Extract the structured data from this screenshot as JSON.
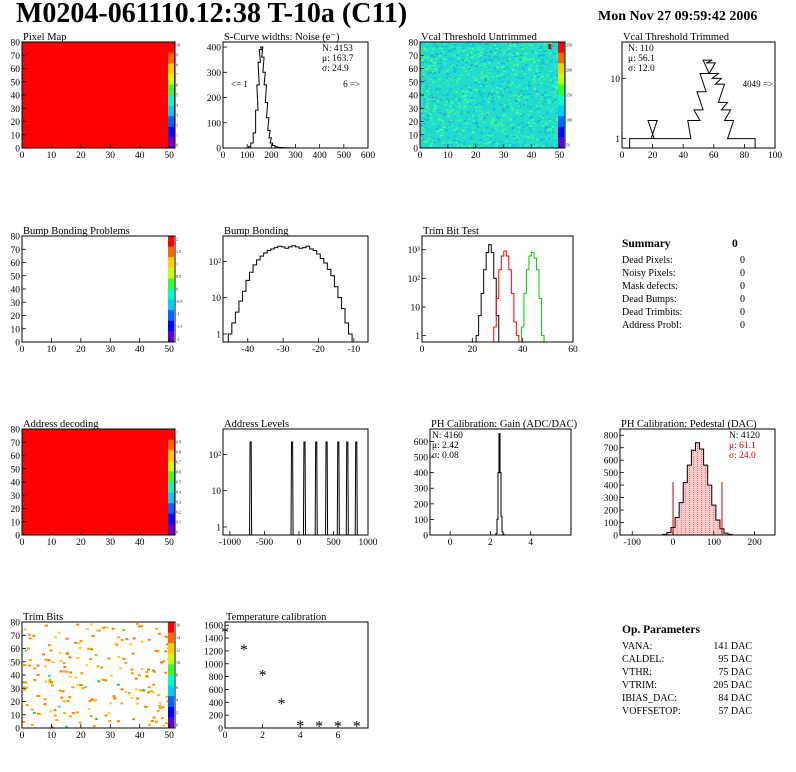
{
  "header": {
    "title": "M0204-061110.12:38 T-10a (C11)",
    "date": "Mon Nov 27 09:59:42 2006"
  },
  "colors": {
    "red_fill": "#ff0000",
    "cyan_map": "#22ddcc",
    "series_black": "#000000",
    "series_red": "#ff0000",
    "series_green": "#00cc00",
    "pedestal_fit": "#cc0000"
  },
  "chart_data": [
    {
      "id": "pixel-map",
      "type": "heatmap",
      "title": "Pixel Map",
      "xticks": [
        "0",
        "10",
        "20",
        "30",
        "40",
        "50"
      ],
      "yticks": [
        "0",
        "10",
        "20",
        "30",
        "40",
        "50",
        "60",
        "70",
        "80"
      ],
      "xlim": [
        0,
        52
      ],
      "ylim": [
        0,
        80
      ],
      "fill": "uniform-red",
      "palette_ticks": [
        "10",
        "9",
        "8",
        "7",
        "6",
        "5",
        "4",
        "3",
        "2",
        "1",
        "0"
      ]
    },
    {
      "id": "scurve-noise",
      "type": "line",
      "title": "S-Curve widths: Noise (e⁻)",
      "xticks": [
        "0",
        "100",
        "200",
        "300",
        "400",
        "500",
        "600"
      ],
      "yticks": [
        "0",
        "100",
        "200",
        "300",
        "400"
      ],
      "xlim": [
        0,
        600
      ],
      "ylim": [
        0,
        420
      ],
      "x": [
        100,
        110,
        120,
        130,
        140,
        145,
        150,
        155,
        160,
        165,
        170,
        175,
        180,
        185,
        190,
        195,
        200,
        210,
        220,
        230,
        240,
        260,
        300
      ],
      "values": [
        0,
        5,
        20,
        60,
        150,
        250,
        340,
        390,
        400,
        360,
        300,
        250,
        180,
        120,
        70,
        40,
        20,
        10,
        5,
        3,
        2,
        1,
        0
      ],
      "stats": [
        "N: 4153",
        "μ: 163.7",
        "σ: 24.9"
      ],
      "underflow": "<= 1",
      "overflow": "6 =>"
    },
    {
      "id": "vcal-untrimmed",
      "type": "heatmap",
      "title": "Vcal Threshold Untrimmed",
      "xticks": [
        "0",
        "10",
        "20",
        "30",
        "40",
        "50"
      ],
      "yticks": [
        "0",
        "10",
        "20",
        "30",
        "40",
        "50",
        "60",
        "70",
        "80"
      ],
      "xlim": [
        0,
        52
      ],
      "ylim": [
        0,
        80
      ],
      "fill": "noisy-cyan",
      "palette_ticks": [
        "250",
        "200",
        "150",
        "100",
        "50"
      ]
    },
    {
      "id": "vcal-trimmed",
      "type": "line",
      "title": "Vcal Threshold Trimmed",
      "xticks": [
        "0",
        "20",
        "40",
        "60",
        "80",
        "100"
      ],
      "yticks": [
        "1",
        "10"
      ],
      "ylog": true,
      "xlim": [
        0,
        100
      ],
      "ylim": [
        0.7,
        40
      ],
      "x": [
        8,
        14,
        18,
        20,
        22,
        24,
        28,
        30,
        36,
        42,
        46,
        48,
        50,
        52,
        54,
        56,
        58,
        60,
        62,
        64,
        66,
        68,
        70,
        72,
        76,
        84
      ],
      "values": [
        1,
        1,
        1,
        2,
        1,
        1,
        1,
        1,
        1,
        1,
        2,
        2,
        3,
        6,
        12,
        20,
        18,
        12,
        10,
        8,
        4,
        3,
        2,
        1,
        1,
        1
      ],
      "stats": [
        "N:  110",
        "μ: 56.1",
        "σ: 12.0"
      ],
      "overflow": "4049 =>"
    },
    {
      "id": "bump-problems",
      "type": "heatmap",
      "title": "Bump Bonding Problems",
      "xticks": [
        "0",
        "10",
        "20",
        "30",
        "40",
        "50"
      ],
      "yticks": [
        "0",
        "10",
        "20",
        "30",
        "40",
        "50",
        "60",
        "70",
        "80"
      ],
      "xlim": [
        0,
        52
      ],
      "ylim": [
        0,
        80
      ],
      "fill": "empty",
      "palette_ticks": [
        "2",
        "1.5",
        "1",
        "0.5",
        "0",
        "-0.5",
        "-1",
        "-1.5",
        "-2"
      ]
    },
    {
      "id": "bump-bonding",
      "type": "line",
      "title": "Bump Bonding",
      "xticks": [
        "-40",
        "-30",
        "-20",
        "-10"
      ],
      "yticks": [
        "1",
        "10",
        "10²"
      ],
      "ylog": true,
      "xlim": [
        -47,
        -6
      ],
      "ylim": [
        0.6,
        500
      ],
      "x": [
        -45,
        -44,
        -43,
        -42,
        -41,
        -40,
        -39,
        -38,
        -37,
        -36,
        -35,
        -34,
        -33,
        -32,
        -31,
        -30,
        -29,
        -28,
        -27,
        -26,
        -25,
        -24,
        -23,
        -22,
        -21,
        -20,
        -19,
        -18,
        -17,
        -16,
        -15,
        -14,
        -13,
        -12,
        -11,
        -10
      ],
      "values": [
        1,
        2,
        4,
        8,
        15,
        30,
        50,
        80,
        110,
        140,
        170,
        200,
        220,
        240,
        260,
        250,
        230,
        250,
        270,
        250,
        230,
        240,
        260,
        220,
        200,
        160,
        120,
        90,
        60,
        40,
        20,
        10,
        5,
        2,
        1,
        0.6
      ]
    },
    {
      "id": "trim-bit-test",
      "type": "line",
      "title": "Trim Bit Test",
      "xticks": [
        "0",
        "20",
        "40",
        "60"
      ],
      "yticks": [
        "1",
        "10",
        "10²",
        "10³"
      ],
      "ylog": true,
      "xlim": [
        0,
        60
      ],
      "ylim": [
        0.6,
        3000
      ],
      "series": [
        {
          "color": "#000000",
          "x": [
            22,
            23,
            24,
            25,
            26,
            27,
            28,
            29,
            30
          ],
          "values": [
            1,
            5,
            30,
            200,
            800,
            1500,
            800,
            100,
            5
          ]
        },
        {
          "color": "#ff0000",
          "x": [
            29,
            30,
            31,
            32,
            33,
            34,
            35,
            36,
            37,
            38
          ],
          "values": [
            2,
            20,
            200,
            600,
            900,
            600,
            200,
            30,
            3,
            1
          ]
        },
        {
          "color": "#00cc00",
          "x": [
            40,
            41,
            42,
            43,
            44,
            45,
            46,
            47,
            48
          ],
          "values": [
            2,
            30,
            200,
            600,
            800,
            500,
            200,
            20,
            1
          ]
        }
      ]
    },
    {
      "id": "address-decoding",
      "type": "heatmap",
      "title": "Address decoding",
      "xticks": [
        "0",
        "10",
        "20",
        "30",
        "40",
        "50"
      ],
      "yticks": [
        "0",
        "10",
        "20",
        "30",
        "40",
        "50",
        "60",
        "70",
        "80"
      ],
      "xlim": [
        0,
        52
      ],
      "ylim": [
        0,
        80
      ],
      "fill": "uniform-red",
      "palette_ticks": [
        "1",
        "0.9",
        "0.8",
        "0.7",
        "0.6",
        "0.5",
        "0.4",
        "0.3",
        "0.2",
        "0.1",
        "0"
      ]
    },
    {
      "id": "address-levels",
      "type": "line",
      "title": "Address Levels",
      "xticks": [
        "-1000",
        "-500",
        "0",
        "500",
        "1000"
      ],
      "yticks": [
        "1",
        "10",
        "10²"
      ],
      "ylog": true,
      "xlim": [
        -1100,
        1000
      ],
      "ylim": [
        0.6,
        500
      ],
      "peaks": [
        -700,
        -100,
        80,
        250,
        400,
        570,
        700,
        830
      ],
      "peak_height": 220
    },
    {
      "id": "ph-gain",
      "type": "line",
      "title": "PH Calibration: Gain (ADC/DAC)",
      "xticks": [
        "0",
        "2",
        "4"
      ],
      "yticks": [
        "0",
        "100",
        "200",
        "300",
        "400",
        "500",
        "600"
      ],
      "xlim": [
        -1,
        6
      ],
      "ylim": [
        0,
        680
      ],
      "x": [
        2.25,
        2.3,
        2.35,
        2.4,
        2.45,
        2.5,
        2.55,
        2.6,
        2.65,
        2.7
      ],
      "values": [
        0,
        10,
        100,
        400,
        650,
        400,
        120,
        20,
        5,
        0
      ],
      "stats": [
        "N: 4160",
        "μ: 2.42",
        "σ: 0.08"
      ]
    },
    {
      "id": "ph-pedestal",
      "type": "line",
      "title": "PH Calibration: Pedestal (DAC)",
      "xticks": [
        "-100",
        "0",
        "100",
        "200"
      ],
      "yticks": [
        "0",
        "100",
        "200",
        "300",
        "400",
        "500",
        "600",
        "700",
        "800"
      ],
      "xlim": [
        -130,
        250
      ],
      "ylim": [
        0,
        850
      ],
      "x": [
        -20,
        -10,
        0,
        10,
        20,
        30,
        40,
        50,
        60,
        70,
        80,
        90,
        100,
        110,
        120,
        130,
        140
      ],
      "values": [
        5,
        20,
        60,
        140,
        260,
        420,
        560,
        680,
        740,
        690,
        560,
        400,
        240,
        120,
        50,
        15,
        5
      ],
      "stats": [
        "N: 4120",
        "μ: 61.1",
        "σ: 24.0"
      ],
      "stats_colors": [
        "#000000",
        "#cc0000",
        "#cc0000"
      ],
      "fit_markers": [
        0,
        120
      ]
    },
    {
      "id": "trim-bits",
      "type": "heatmap",
      "title": "Trim Bits",
      "xticks": [
        "0",
        "10",
        "20",
        "30",
        "40",
        "50"
      ],
      "yticks": [
        "0",
        "10",
        "20",
        "30",
        "40",
        "50",
        "60",
        "70",
        "80"
      ],
      "xlim": [
        0,
        52
      ],
      "ylim": [
        0,
        80
      ],
      "fill": "sparse-orange",
      "palette_ticks": [
        "16",
        "14",
        "12",
        "10",
        "8",
        "6",
        "4",
        "2",
        "0"
      ]
    },
    {
      "id": "temperature-calibration",
      "type": "scatter",
      "title": "Temperature calibration",
      "xticks": [
        "0",
        "2",
        "4",
        "6"
      ],
      "yticks": [
        "0",
        "200",
        "400",
        "600",
        "800",
        "1000",
        "1200",
        "1400",
        "1600"
      ],
      "xlim": [
        0,
        7.6
      ],
      "ylim": [
        0,
        1650
      ],
      "x": [
        0,
        1,
        2,
        3,
        4,
        5,
        6,
        7
      ],
      "values": [
        1500,
        1230,
        830,
        390,
        50,
        40,
        40,
        40
      ]
    }
  ],
  "summary": {
    "title": "Summary",
    "total": "0",
    "rows": [
      {
        "label": "Dead Pixels:",
        "value": "0"
      },
      {
        "label": "Noisy Pixels:",
        "value": "0"
      },
      {
        "label": "Mask defects:",
        "value": "0"
      },
      {
        "label": "Dead Bumps:",
        "value": "0"
      },
      {
        "label": "Dead Trimbits:",
        "value": "0"
      },
      {
        "label": "Address Probl:",
        "value": "0"
      }
    ]
  },
  "parameters": {
    "title": "Op. Parameters",
    "rows": [
      {
        "label": "VANA:",
        "value": "141 DAC"
      },
      {
        "label": "CALDEL:",
        "value": "95 DAC"
      },
      {
        "label": "VTHR:",
        "value": "75 DAC"
      },
      {
        "label": "VTRIM:",
        "value": "205 DAC"
      },
      {
        "label": "IBIAS_DAC:",
        "value": "84 DAC"
      },
      {
        "label": "VOFFSETOP:",
        "value": "57 DAC"
      }
    ]
  }
}
